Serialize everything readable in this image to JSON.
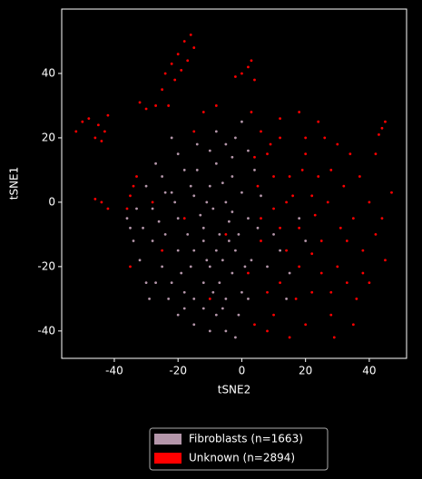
{
  "chart_data": {
    "type": "scatter",
    "x_label": "tSNE2",
    "y_label": "tSNE1",
    "xlim": [
      -56.5,
      51.7
    ],
    "ylim": [
      -48.5,
      60
    ],
    "xticks": [
      -40,
      -20,
      0,
      20,
      40
    ],
    "yticks": [
      -40,
      -20,
      0,
      20,
      40
    ],
    "legend": "bottom",
    "series": [
      {
        "name": "Fibroblasts (n=1663)",
        "color": "#b496aa",
        "x": [
          -30,
          -28,
          -25,
          -22,
          -20,
          -18,
          -15,
          -12,
          -10,
          -8,
          -5,
          -3,
          0,
          2,
          -2,
          -5,
          0,
          -8,
          -10,
          -12,
          -15,
          -8,
          -10,
          -5,
          -3,
          0,
          -2,
          -20,
          -25,
          -28,
          -32,
          -35,
          -33,
          -22,
          -18,
          -15,
          -5,
          -7,
          -12,
          -16,
          -24,
          -27,
          -20,
          -14,
          -10,
          -6,
          -1,
          3,
          5,
          4,
          2,
          -4,
          -9,
          -13,
          -17,
          -21,
          -26,
          -30,
          -34,
          -29,
          -20,
          -12,
          -6,
          -1,
          2,
          10,
          12,
          15,
          18,
          14,
          8,
          -16,
          -11,
          -7,
          -3,
          -19,
          -23,
          -9,
          -4,
          1,
          -24,
          -14,
          -8,
          -18,
          -11,
          -6,
          -2,
          -15,
          -27,
          -31,
          20,
          6,
          -36,
          -22,
          -3
        ],
        "y": [
          5,
          -2,
          8,
          3,
          -5,
          10,
          2,
          -8,
          5,
          12,
          0,
          8,
          3,
          -5,
          20,
          18,
          25,
          -15,
          -20,
          -25,
          -30,
          -35,
          -40,
          -30,
          -22,
          -28,
          -15,
          -15,
          -20,
          -12,
          -18,
          -8,
          -2,
          -25,
          -33,
          -38,
          -40,
          -25,
          -12,
          -20,
          -10,
          12,
          15,
          18,
          16,
          6,
          -10,
          -18,
          -8,
          10,
          16,
          -6,
          -2,
          -4,
          -10,
          0,
          -6,
          -25,
          -12,
          -30,
          -35,
          -33,
          -18,
          -35,
          -30,
          -10,
          -15,
          -22,
          -5,
          -30,
          -20,
          5,
          0,
          -10,
          -3,
          -22,
          -30,
          -28,
          -12,
          -20,
          3,
          10,
          22,
          -28,
          -18,
          -33,
          -42,
          -15,
          -25,
          -8,
          -12,
          2,
          -5,
          20,
          14
        ]
      },
      {
        "name": "Unknown (n=2894)",
        "color": "#ff0000",
        "x": [
          -18,
          -16,
          -20,
          -17,
          -22,
          -24,
          -21,
          -19,
          -15,
          -25,
          -23,
          -27,
          -30,
          -32,
          -45,
          -48,
          -43,
          -46,
          -42,
          -50,
          -52,
          -44,
          0,
          2,
          4,
          -2,
          3,
          44,
          45,
          43,
          -44,
          -42,
          -46,
          -34,
          -35,
          -33,
          -36,
          5,
          8,
          10,
          12,
          15,
          18,
          20,
          22,
          25,
          28,
          30,
          32,
          35,
          38,
          40,
          42,
          45,
          33,
          36,
          28,
          20,
          15,
          10,
          8,
          12,
          18,
          22,
          25,
          14,
          6,
          2,
          4,
          8,
          26,
          30,
          34,
          24,
          18,
          12,
          6,
          4,
          10,
          16,
          24,
          27,
          31,
          37,
          40,
          44,
          47,
          35,
          29,
          22,
          17,
          14,
          20,
          9,
          38,
          42,
          12,
          28,
          33,
          19,
          23,
          6,
          3,
          -5,
          -10,
          -25,
          -18,
          -28,
          -15,
          -8,
          -35,
          -12
        ],
        "y": [
          50,
          52,
          46,
          44,
          43,
          40,
          38,
          41,
          48,
          35,
          30,
          30,
          29,
          31,
          24,
          26,
          22,
          20,
          27,
          25,
          22,
          19,
          40,
          42,
          38,
          39,
          44,
          23,
          25,
          21,
          0,
          -2,
          1,
          5,
          2,
          8,
          -2,
          5,
          15,
          -2,
          20,
          8,
          -8,
          15,
          2,
          -12,
          10,
          -20,
          5,
          -5,
          -15,
          0,
          -10,
          -18,
          -25,
          -30,
          -35,
          -38,
          -42,
          -35,
          -28,
          -25,
          -20,
          -28,
          -22,
          -15,
          -12,
          -22,
          -38,
          -40,
          20,
          18,
          15,
          25,
          28,
          26,
          22,
          14,
          8,
          2,
          8,
          0,
          -8,
          8,
          -25,
          -5,
          3,
          -38,
          -42,
          -16,
          -30,
          0,
          20,
          18,
          -22,
          15,
          -8,
          -28,
          -12,
          10,
          -4,
          -5,
          28,
          -10,
          -30,
          -15,
          -5,
          0,
          22,
          30,
          -20,
          28
        ]
      }
    ]
  }
}
